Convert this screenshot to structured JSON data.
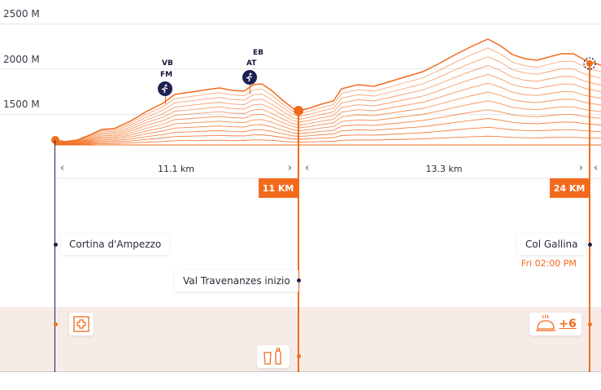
{
  "yaxis": {
    "labels": [
      "2500 M",
      "2000 M",
      "1500 M"
    ],
    "values": [
      2500,
      2000,
      1500
    ]
  },
  "segments": [
    {
      "distance": "11.1 km"
    },
    {
      "distance": "13.3 km"
    }
  ],
  "km_badges": [
    "11 KM",
    "24 KM"
  ],
  "waypoint_markers": [
    {
      "top_label": "VB",
      "bottom_label": "FM"
    },
    {
      "top_label": "EB",
      "bottom_label": "AT"
    }
  ],
  "stops": [
    {
      "name": "Cortina d'Ampezzo",
      "time": ""
    },
    {
      "name": "Val Travenanzes inizio",
      "time": ""
    },
    {
      "name": "Col Gallina",
      "time": "Fri 02:00 PM"
    }
  ],
  "services": {
    "first_aid_icon": "first-aid-cross-icon",
    "water_icon": "water-bottle-icon",
    "food_icon": "food-cloche-icon",
    "extra_count": "+6"
  },
  "colors": {
    "accent": "#f26b1d",
    "navy": "#1d2250",
    "band": "#f7ebe8"
  }
}
